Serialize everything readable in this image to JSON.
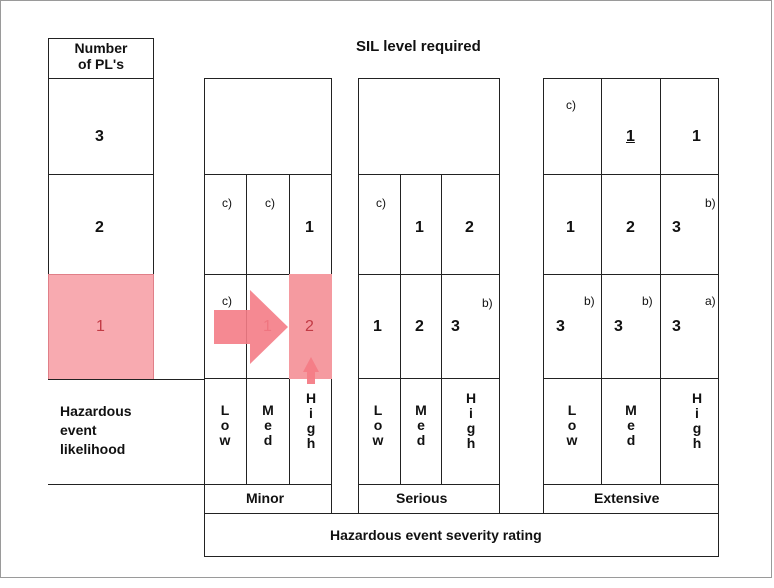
{
  "header": {
    "pl_title": "Number\nof PL's",
    "sil_title": "SIL level required"
  },
  "pl_levels": [
    "3",
    "2",
    "1"
  ],
  "likelihood_label": "Hazardous\nevent\nlikelihood",
  "severity_rating_label": "Hazardous event severity rating",
  "minor": {
    "label": "Minor",
    "row2": [
      "c)",
      "c)",
      "1"
    ],
    "row1": [
      "c)",
      "1",
      "2"
    ],
    "columns": [
      "L\no\nw",
      "M\ne\nd",
      "H\ni\ng\nh"
    ]
  },
  "serious": {
    "label": "Serious",
    "row2": [
      "c)",
      "1",
      "2"
    ],
    "row1": [
      "1",
      "2",
      "3",
      "b)"
    ],
    "columns": [
      "L\no\nw",
      "M\ne\nd",
      "H\ni\ng\nh"
    ]
  },
  "extensive": {
    "label": "Extensive",
    "row3": [
      "c)",
      "1",
      "1"
    ],
    "row2": [
      "1",
      "2",
      "3",
      "b)"
    ],
    "row1": [
      "b)",
      "3",
      "b)",
      "3",
      "a)",
      "3"
    ],
    "columns": [
      "L\no\nw",
      "M\ne\nd",
      "H\ni\ng\nh"
    ]
  },
  "colors": {
    "highlight": "#f8aab0",
    "arrow": "#f47c86",
    "highlight_text": "#c23b45"
  }
}
